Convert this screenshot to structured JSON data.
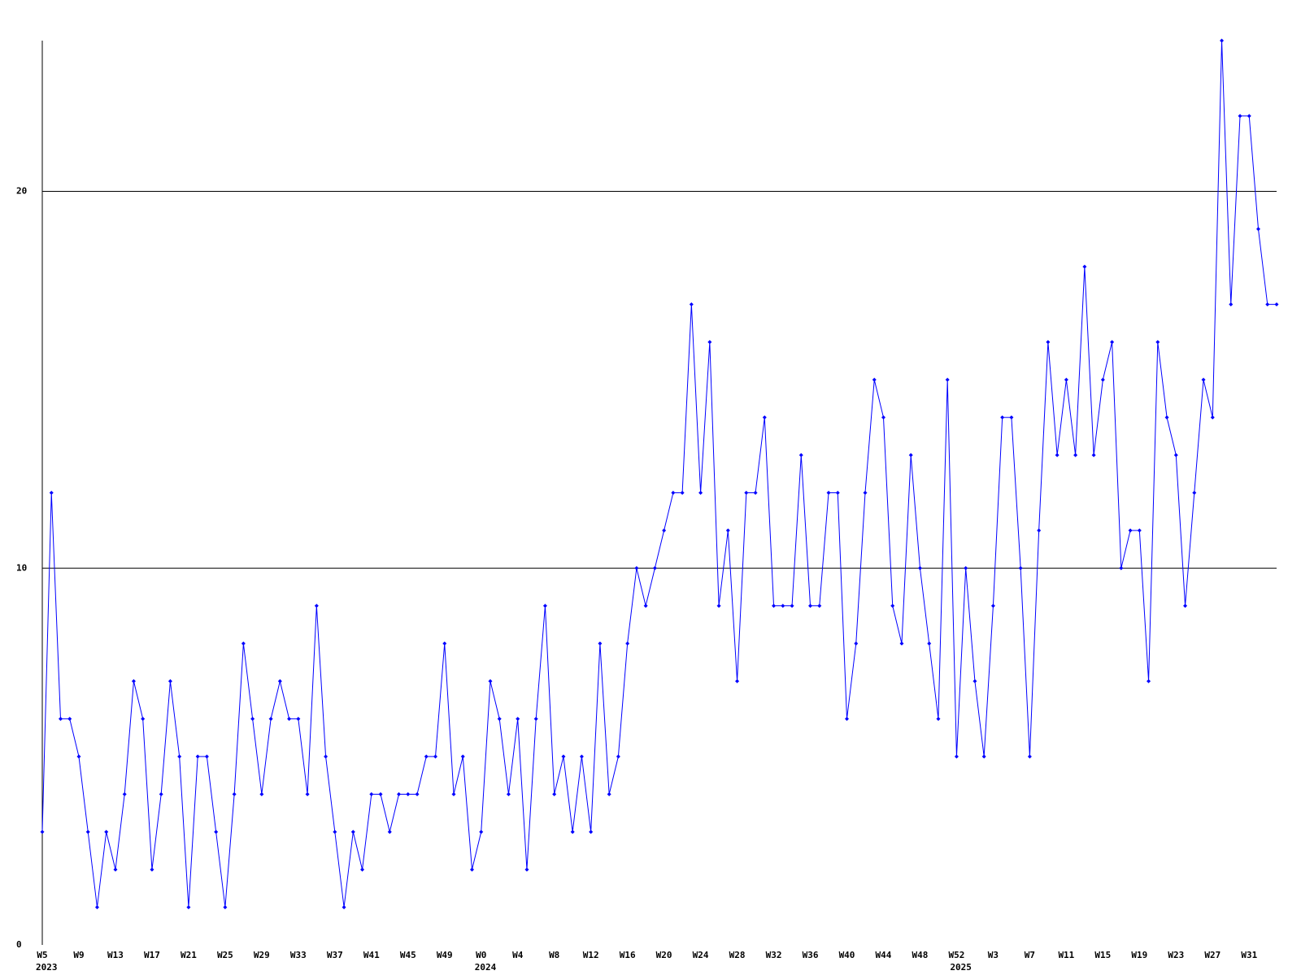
{
  "chart_data": {
    "type": "line",
    "categories": [
      "W5",
      null,
      null,
      null,
      "W9",
      null,
      null,
      null,
      "W13",
      null,
      null,
      null,
      "W17",
      null,
      null,
      null,
      "W21",
      null,
      null,
      null,
      "W25",
      null,
      null,
      null,
      "W29",
      null,
      null,
      null,
      "W33",
      null,
      null,
      null,
      "W37",
      null,
      null,
      null,
      "W41",
      null,
      null,
      null,
      "W45",
      null,
      null,
      null,
      "W49",
      null,
      null,
      null,
      "W0",
      null,
      null,
      null,
      "W4",
      null,
      null,
      null,
      "W8",
      null,
      null,
      null,
      "W12",
      null,
      null,
      null,
      "W16",
      null,
      null,
      null,
      "W20",
      null,
      null,
      null,
      "W24",
      null,
      null,
      null,
      "W28",
      null,
      null,
      null,
      "W32",
      null,
      null,
      null,
      "W36",
      null,
      null,
      null,
      "W40",
      null,
      null,
      null,
      "W44",
      null,
      null,
      null,
      "W48",
      null,
      null,
      null,
      "W52",
      null,
      null,
      null,
      "W3",
      null,
      null,
      null,
      "W7",
      null,
      null,
      null,
      "W11",
      null,
      null,
      null,
      "W15",
      null,
      null,
      null,
      "W19",
      null,
      null,
      null,
      "W23",
      null,
      null,
      null,
      "W27",
      null,
      null,
      null,
      "W31",
      null,
      null,
      null
    ],
    "category_years": [
      "2023",
      null,
      null,
      null,
      null,
      null,
      null,
      null,
      null,
      null,
      null,
      null,
      null,
      null,
      null,
      null,
      null,
      null,
      null,
      null,
      null,
      null,
      null,
      null,
      null,
      null,
      null,
      null,
      null,
      null,
      null,
      null,
      null,
      null,
      null,
      null,
      null,
      null,
      null,
      null,
      null,
      null,
      null,
      null,
      null,
      null,
      null,
      null,
      "2024",
      null,
      null,
      null,
      null,
      null,
      null,
      null,
      null,
      null,
      null,
      null,
      null,
      null,
      null,
      null,
      null,
      null,
      null,
      null,
      null,
      null,
      null,
      null,
      null,
      null,
      null,
      null,
      null,
      null,
      null,
      null,
      null,
      null,
      null,
      null,
      null,
      null,
      null,
      null,
      null,
      null,
      null,
      null,
      null,
      null,
      null,
      null,
      null,
      null,
      null,
      null,
      "2025",
      null,
      null,
      null,
      null,
      null,
      null,
      null,
      null,
      null,
      null,
      null,
      null,
      null,
      null,
      null,
      null,
      null,
      null,
      null,
      null,
      null,
      null,
      null,
      null,
      null,
      null,
      null,
      null,
      null,
      null,
      null,
      null,
      null,
      null,
      null
    ],
    "series": [
      {
        "color": "#0000ff",
        "values": [
          3,
          12,
          6,
          6,
          5,
          3,
          1,
          3,
          2,
          4,
          7,
          6,
          2,
          4,
          7,
          5,
          1,
          5,
          5,
          3,
          1,
          4,
          8,
          6,
          4,
          6,
          7,
          6,
          6,
          4,
          9,
          5,
          3,
          1,
          3,
          2,
          4,
          4,
          3,
          4,
          4,
          4,
          5,
          5,
          8,
          4,
          5,
          2,
          3,
          7,
          6,
          4,
          6,
          2,
          6,
          9,
          4,
          5,
          3,
          5,
          3,
          8,
          4,
          5,
          8,
          10,
          9,
          10,
          11,
          12,
          12,
          17,
          12,
          16,
          9,
          11,
          7,
          12,
          12,
          14,
          9,
          9,
          9,
          13,
          9,
          9,
          12,
          12,
          6,
          8,
          12,
          15,
          14,
          9,
          8,
          13,
          10,
          8,
          6,
          15,
          5,
          10,
          7,
          5,
          9,
          14,
          14,
          10,
          5,
          11,
          16,
          13,
          15,
          13,
          18,
          13,
          15,
          16,
          10,
          11,
          11,
          7,
          16,
          14,
          13,
          9,
          12,
          15,
          14,
          24,
          17,
          22,
          22,
          19,
          17,
          17
        ]
      }
    ],
    "ylim": [
      0,
      24
    ],
    "yticks": [
      0,
      10,
      20
    ],
    "grid": true
  }
}
